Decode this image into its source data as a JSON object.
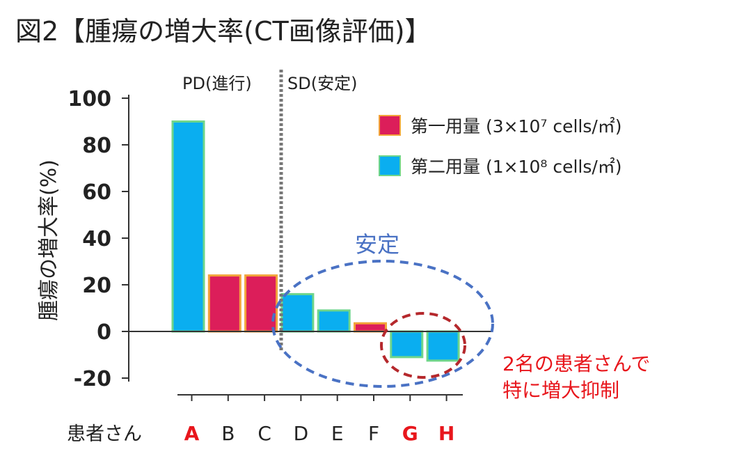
{
  "title": "図2【腫瘍の増大率(CT画像評価)】",
  "chart_data": {
    "type": "bar",
    "categories": [
      "A",
      "B",
      "C",
      "D",
      "E",
      "F",
      "G",
      "H"
    ],
    "values": [
      90,
      24,
      24,
      16,
      9,
      3.5,
      -11,
      -12.5
    ],
    "dose_group": [
      2,
      1,
      1,
      2,
      2,
      1,
      2,
      2
    ],
    "highlight_categories": [
      "A",
      "G",
      "H"
    ],
    "ylabel": "腫瘍の増大率(%)",
    "xlabel": "患者さん",
    "ylim": [
      -20,
      100
    ],
    "yticks": [
      100,
      80,
      60,
      40,
      20,
      0,
      -20
    ],
    "legend": [
      {
        "label": "第一用量 (3×10⁷ cells/㎡)",
        "color": "#dc1e5a",
        "border": "#f2a43a"
      },
      {
        "label": "第二用量 (1×10⁸ cells/㎡)",
        "color": "#0aaef0",
        "border": "#6fd58a"
      }
    ],
    "legend_position": "top-right",
    "regions": {
      "pd": "PD(進行)",
      "sd": "SD(安定)"
    },
    "annotations": {
      "stable": "安定",
      "suppressed_line1": "2名の患者さんで",
      "suppressed_line2": "特に増大抑制"
    },
    "colors": {
      "stable_ellipse": "#4a72c4",
      "suppressed_ellipse": "#b5282c",
      "highlight_label": "#e8161c",
      "suppressed_text": "#e8161c"
    }
  }
}
